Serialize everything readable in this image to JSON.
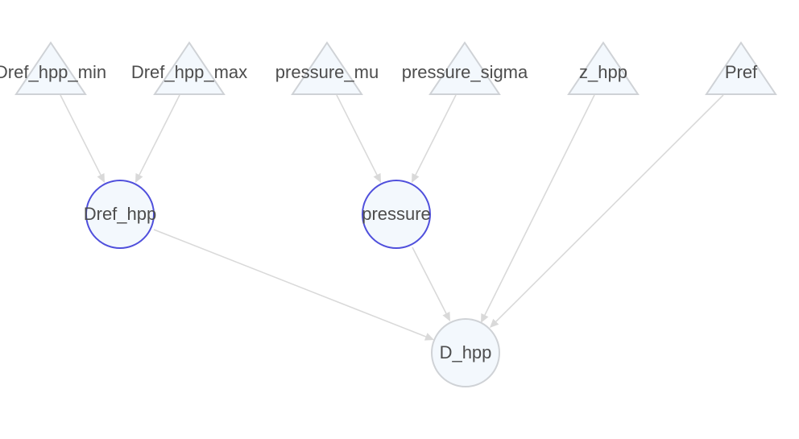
{
  "graph": {
    "colors": {
      "node_fill": "#f3f8fd",
      "observed_stroke": "#cfd2d6",
      "latent_stroke": "#4f4fdc",
      "edge": "#d9d9d9",
      "label": "#4d4d4d"
    },
    "nodes": [
      {
        "id": "Dref_hpp_min",
        "label": "Dref_hpp_min",
        "shape": "triangle",
        "role": "parameter"
      },
      {
        "id": "Dref_hpp_max",
        "label": "Dref_hpp_max",
        "shape": "triangle",
        "role": "parameter"
      },
      {
        "id": "pressure_mu",
        "label": "pressure_mu",
        "shape": "triangle",
        "role": "parameter"
      },
      {
        "id": "pressure_sigma",
        "label": "pressure_sigma",
        "shape": "triangle",
        "role": "parameter"
      },
      {
        "id": "z_hpp",
        "label": "z_hpp",
        "shape": "triangle",
        "role": "parameter"
      },
      {
        "id": "Pref",
        "label": "Pref",
        "shape": "triangle",
        "role": "parameter"
      },
      {
        "id": "Dref_hpp",
        "label": "Dref_hpp",
        "shape": "circle",
        "role": "latent"
      },
      {
        "id": "pressure",
        "label": "pressure",
        "shape": "circle",
        "role": "latent"
      },
      {
        "id": "D_hpp",
        "label": "D_hpp",
        "shape": "circle",
        "role": "observed"
      }
    ],
    "edges": [
      {
        "from": "Dref_hpp_min",
        "to": "Dref_hpp"
      },
      {
        "from": "Dref_hpp_max",
        "to": "Dref_hpp"
      },
      {
        "from": "pressure_mu",
        "to": "pressure"
      },
      {
        "from": "pressure_sigma",
        "to": "pressure"
      },
      {
        "from": "Dref_hpp",
        "to": "D_hpp"
      },
      {
        "from": "pressure",
        "to": "D_hpp"
      },
      {
        "from": "z_hpp",
        "to": "D_hpp"
      },
      {
        "from": "Pref",
        "to": "D_hpp"
      }
    ]
  }
}
